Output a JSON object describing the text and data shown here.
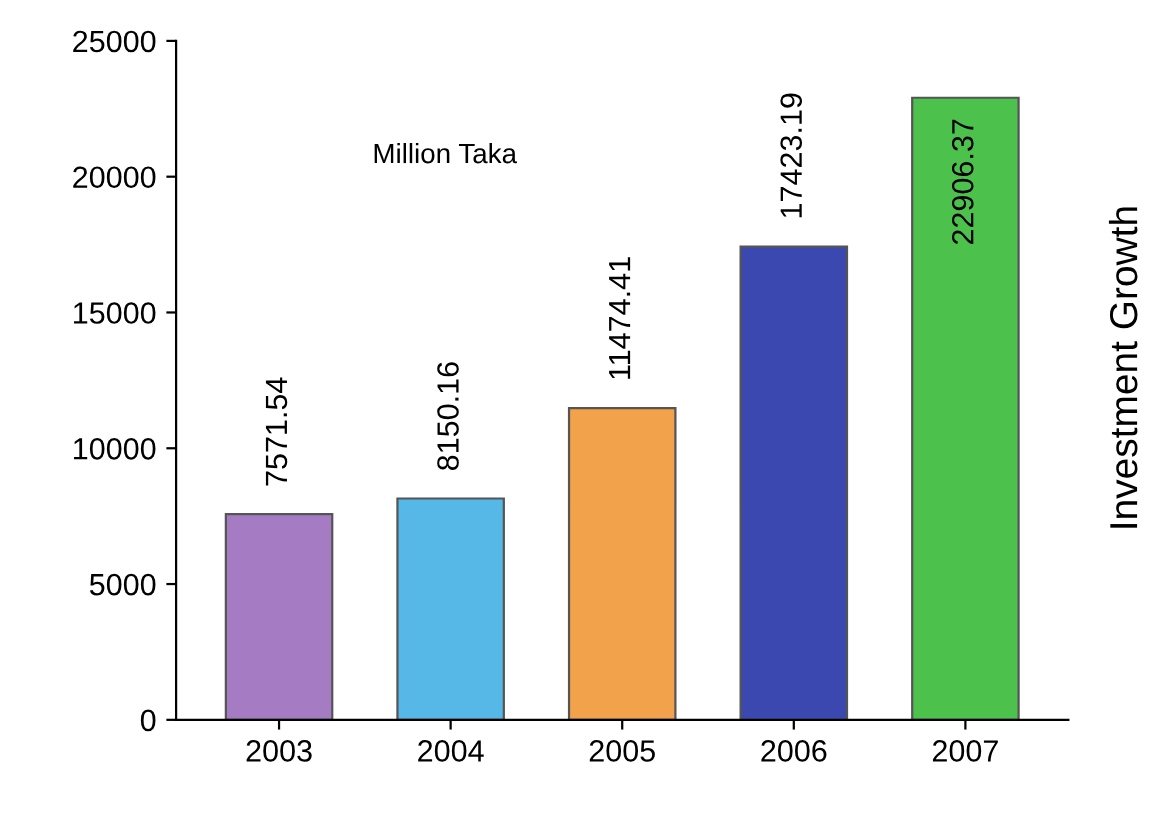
{
  "chart_data": {
    "type": "bar",
    "title": "Investment Growth",
    "annotations": [
      "Million Taka"
    ],
    "categories": [
      "2003",
      "2004",
      "2005",
      "2006",
      "2007"
    ],
    "values": [
      7571.54,
      8150.16,
      11474.41,
      17423.19,
      22906.37
    ],
    "colors": [
      "#a57cc4",
      "#55b8e6",
      "#f2a24a",
      "#3a48b0",
      "#4cc24c"
    ],
    "ylim": [
      0,
      25000
    ],
    "yticks": [
      0,
      5000,
      10000,
      15000,
      20000,
      25000
    ],
    "data_labels": true,
    "grid": false,
    "legend": false
  }
}
